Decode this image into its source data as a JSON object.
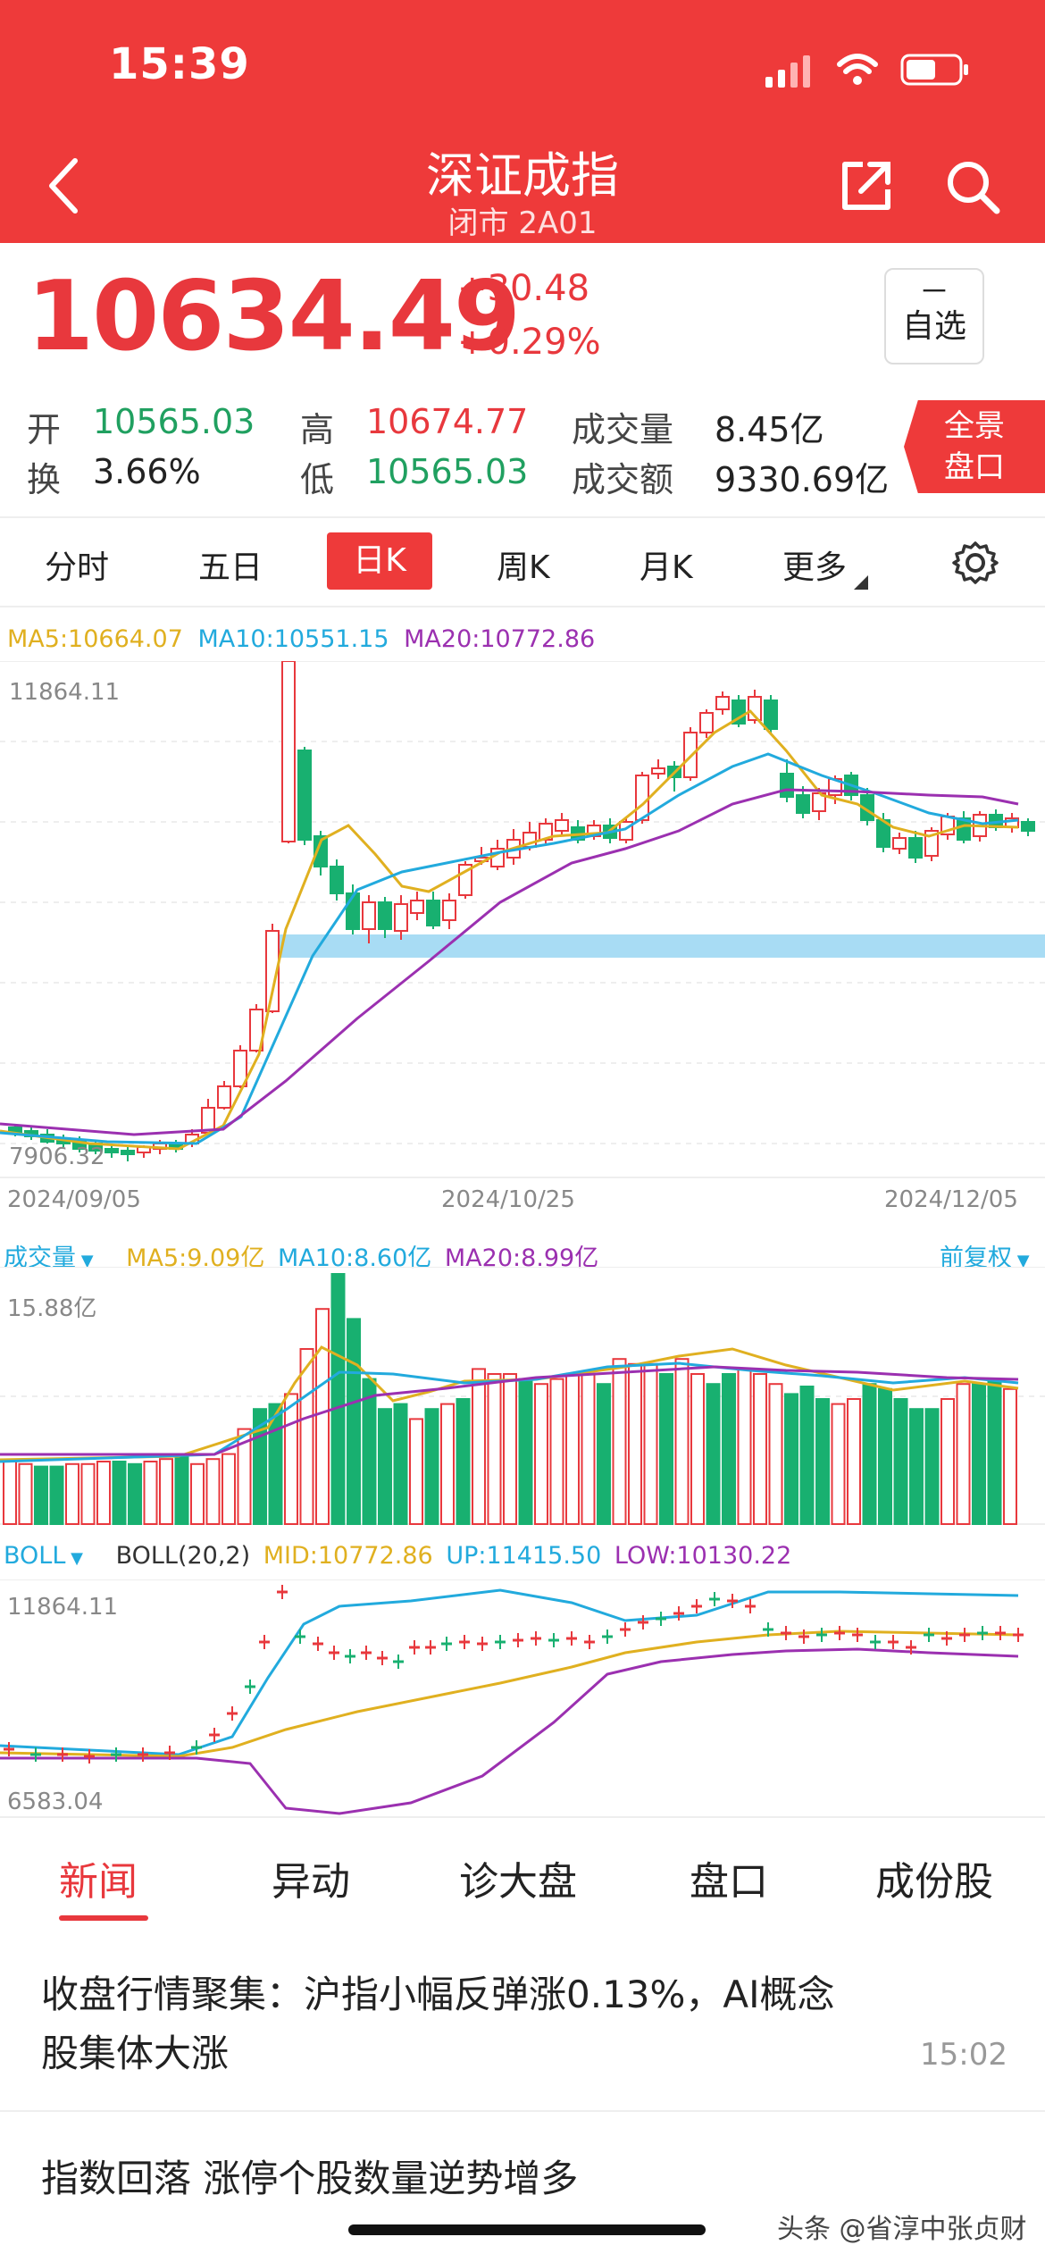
{
  "status_bar": {
    "time": "15:39"
  },
  "header": {
    "title": "深证成指",
    "subtitle": "闭市 2A01"
  },
  "quote": {
    "price": "10634.49",
    "change": "+30.48",
    "change_pct": "+0.29%",
    "watch_dash": "－",
    "watch_label": "自选",
    "stats": [
      {
        "label": "开",
        "value": "10565.03",
        "color": "green"
      },
      {
        "label": "高",
        "value": "10674.77",
        "color": "red"
      },
      {
        "label": "成交量",
        "value": "8.45亿",
        "color": "black"
      },
      {
        "label": "换",
        "value": "3.66%",
        "color": "black"
      },
      {
        "label": "低",
        "value": "10565.03",
        "color": "green"
      },
      {
        "label": "成交额",
        "value": "9330.69亿",
        "color": "black"
      }
    ],
    "panorama": [
      "全景",
      "盘口"
    ]
  },
  "period_tabs": [
    "分时",
    "五日",
    "日K",
    "周K",
    "月K",
    "更多"
  ],
  "active_period": "日K",
  "kline": {
    "ma_legend": [
      {
        "text": "MA5:10664.07",
        "color": "#e0b020"
      },
      {
        "text": "MA10:10551.15",
        "color": "#22aadd"
      },
      {
        "text": "MA20:10772.86",
        "color": "#9b30b0"
      }
    ],
    "y_high": "11864.11",
    "y_low": "7906.32",
    "dates": [
      "2024/09/05",
      "2024/10/25",
      "2024/12/05"
    ]
  },
  "volume": {
    "title": "成交量",
    "legend": [
      {
        "text": "MA5:9.09亿",
        "color": "#e0b020"
      },
      {
        "text": "MA10:8.60亿",
        "color": "#22aadd"
      },
      {
        "text": "MA20:8.99亿",
        "color": "#9b30b0"
      }
    ],
    "restore": "前复权",
    "y_high": "15.88亿"
  },
  "boll": {
    "title": "BOLL",
    "params": "BOLL(20,2)",
    "legend": [
      {
        "text": "MID:10772.86",
        "color": "#e0b020"
      },
      {
        "text": "UP:11415.50",
        "color": "#22aadd"
      },
      {
        "text": "LOW:10130.22",
        "color": "#9b30b0"
      }
    ],
    "y_high": "11864.11",
    "y_low": "6583.04"
  },
  "bottom_tabs": [
    "新闻",
    "异动",
    "诊大盘",
    "盘口",
    "成份股"
  ],
  "news": [
    {
      "title": "收盘行情聚集：沪指小幅反弹涨0.13%，AI概念股集体大涨",
      "time": "15:02"
    },
    {
      "title": "指数回落 涨停个股数量逆势增多"
    }
  ],
  "watermark": "头条 @省淳中张贞财"
}
